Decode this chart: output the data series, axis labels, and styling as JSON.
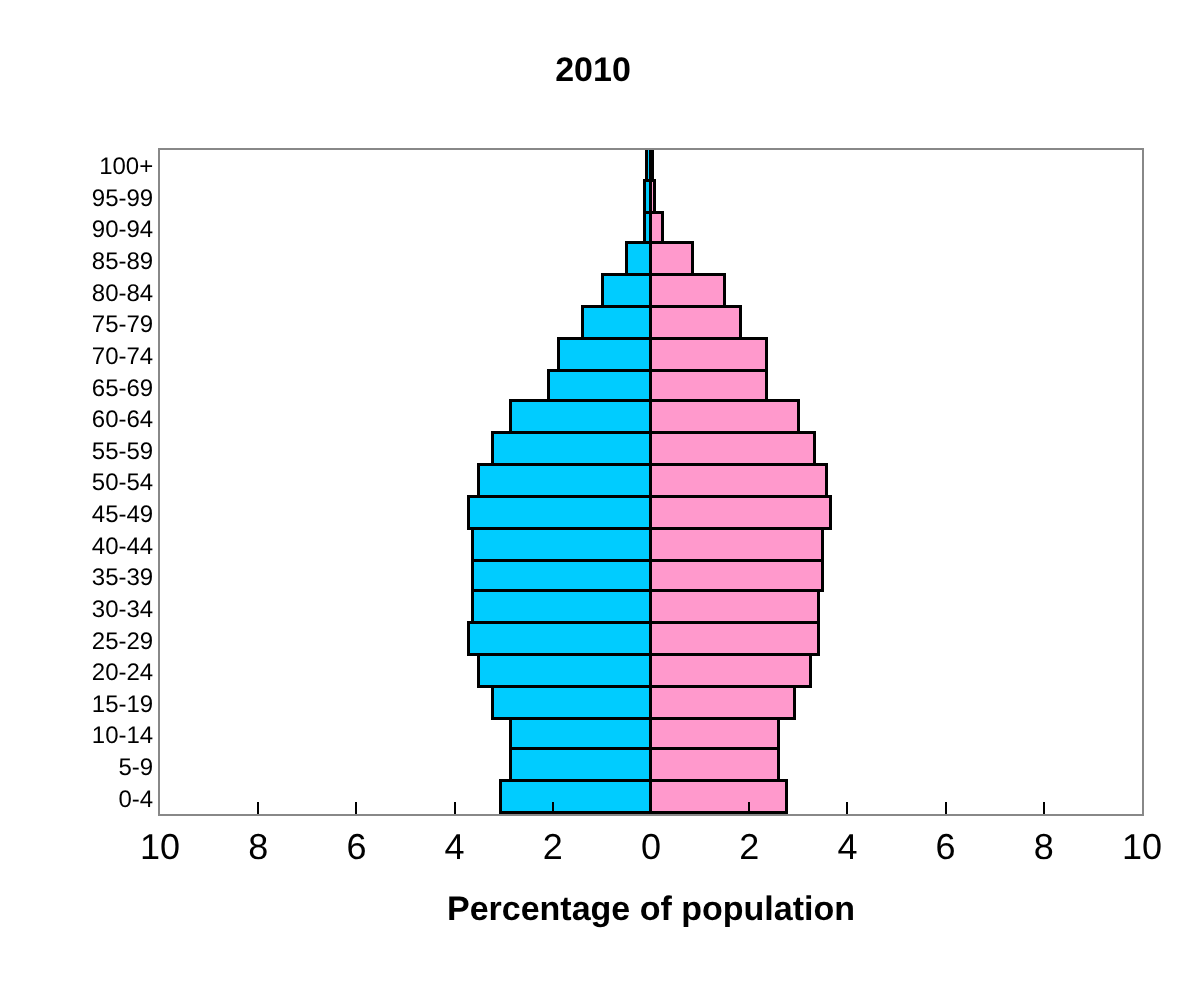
{
  "chart_data": {
    "type": "bar",
    "orientation": "horizontal",
    "title": "2010",
    "xlabel": "Percentage of population",
    "categories": [
      "100+",
      "95-99",
      "90-94",
      "85-89",
      "80-84",
      "75-79",
      "70-74",
      "65-69",
      "60-64",
      "55-59",
      "50-54",
      "45-49",
      "40-44",
      "35-39",
      "30-34",
      "25-29",
      "20-24",
      "15-19",
      "10-14",
      "5-9",
      "0-4"
    ],
    "series": [
      {
        "color": "#00ccff",
        "values": [
          -0.05,
          -0.1,
          -0.1,
          -0.45,
          -0.95,
          -1.35,
          -1.85,
          -2.05,
          -2.85,
          -3.2,
          -3.5,
          -3.7,
          -3.6,
          -3.6,
          -3.6,
          -3.7,
          -3.5,
          -3.2,
          -2.85,
          -2.85,
          -3.05
        ]
      },
      {
        "color": "#ff99cc",
        "values": [
          0.05,
          0.1,
          0.27,
          0.88,
          1.53,
          1.86,
          2.37,
          2.37,
          3.02,
          3.36,
          3.62,
          3.69,
          3.52,
          3.52,
          3.44,
          3.44,
          3.28,
          2.94,
          2.62,
          2.62,
          2.8
        ]
      }
    ],
    "xlim": [
      -10,
      10
    ],
    "xticks": [
      {
        "value": -10,
        "label": "10"
      },
      {
        "value": -8,
        "label": "8"
      },
      {
        "value": -6,
        "label": "6"
      },
      {
        "value": -4,
        "label": "4"
      },
      {
        "value": -2,
        "label": "2"
      },
      0,
      2,
      4,
      6,
      8,
      10
    ],
    "stacked": true
  }
}
